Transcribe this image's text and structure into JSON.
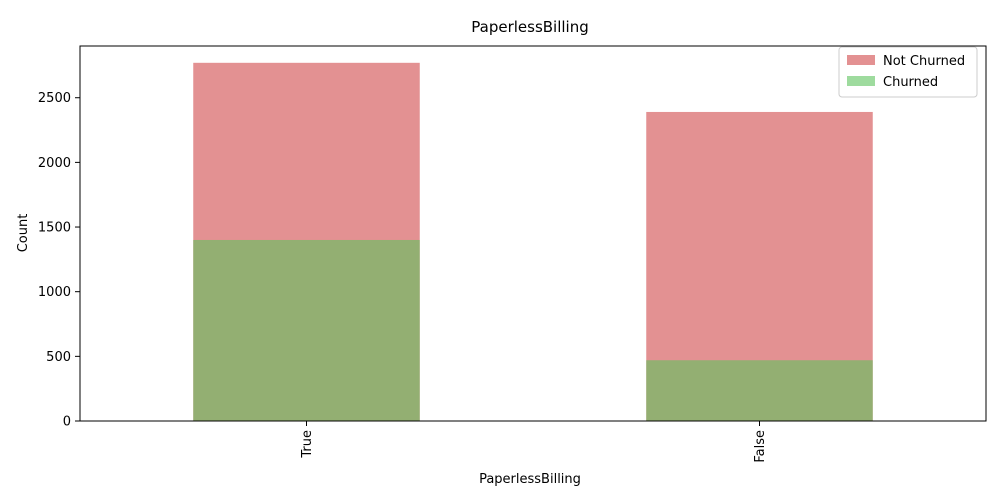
{
  "chart_data": {
    "type": "bar",
    "title": "PaperlessBilling",
    "xlabel": "PaperlessBilling",
    "ylabel": "Count",
    "categories": [
      "True",
      "False"
    ],
    "ylim": [
      0,
      2900
    ],
    "yticks": [
      0,
      500,
      1000,
      1500,
      2000,
      2500
    ],
    "overlay": true,
    "series": [
      {
        "name": "Not Churned",
        "values": [
          2770,
          2390
        ],
        "color": "#e39192",
        "opacity": 1
      },
      {
        "name": "Churned",
        "values": [
          1400,
          470
        ],
        "color": "#5ec35e",
        "opacity": 0.6
      }
    ],
    "legend_position": "top-right",
    "grid": false
  }
}
